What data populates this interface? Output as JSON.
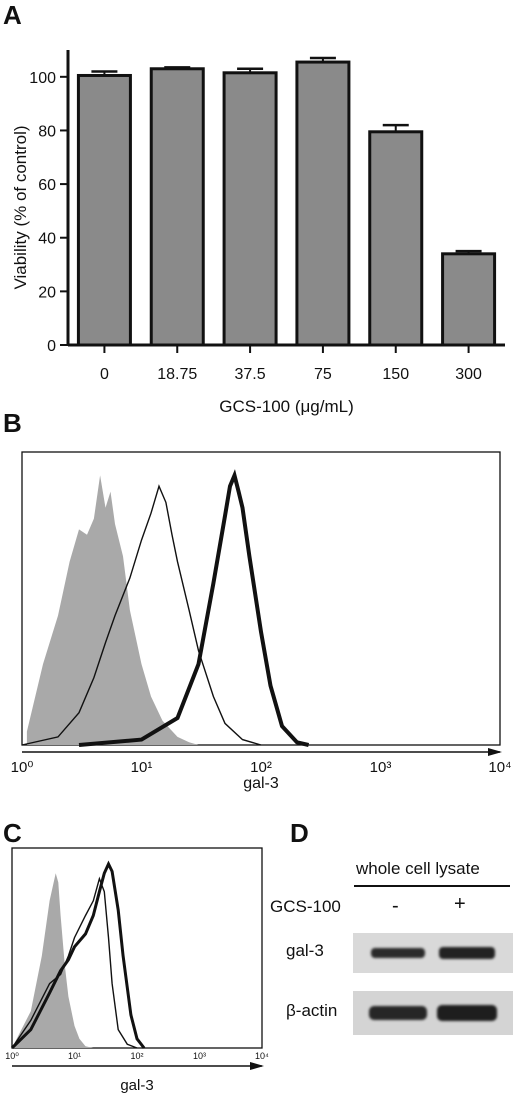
{
  "panels": {
    "a": "A",
    "b": "B",
    "c": "C",
    "d": "D"
  },
  "colors": {
    "bar_fill": "#8a8a8a",
    "hist_fill": "#a9a9a9",
    "ink": "#111111",
    "blot_bg": "#d9d9d9",
    "band": "#2a2a2a"
  },
  "chart_data": [
    {
      "id": "panel-a",
      "type": "bar",
      "categories": [
        "0",
        "18.75",
        "37.5",
        "75",
        "150",
        "300"
      ],
      "values": [
        100.5,
        103,
        101.5,
        105.5,
        79.5,
        34
      ],
      "errors": [
        1.5,
        0.5,
        1.5,
        1.5,
        2.5,
        1
      ],
      "xlabel": "GCS-100 (μg/mL)",
      "ylabel": "Viability (% of control)",
      "ylim": [
        0,
        110
      ],
      "yticks": [
        0,
        20,
        40,
        60,
        80,
        100
      ]
    },
    {
      "id": "panel-b",
      "type": "area",
      "xlabel": "gal-3",
      "xscale": "log",
      "xlim": [
        1,
        10000
      ],
      "ylim": [
        0,
        1
      ],
      "xtick_labels": [
        "10⁰",
        "10¹",
        "10²",
        "10³",
        "10⁴"
      ],
      "series": [
        {
          "style": "filled gray",
          "x": [
            1.1,
            1.5,
            2,
            2.5,
            3,
            3.5,
            4,
            4.5,
            5,
            5.5,
            6,
            7,
            8,
            10,
            12,
            15,
            20,
            25,
            30
          ],
          "y": [
            0.05,
            0.3,
            0.48,
            0.68,
            0.8,
            0.78,
            0.84,
            1.0,
            0.88,
            0.94,
            0.82,
            0.7,
            0.5,
            0.3,
            0.18,
            0.09,
            0.03,
            0.01,
            0.0
          ]
        },
        {
          "style": "thin line",
          "x": [
            1,
            2,
            3,
            4,
            5,
            6,
            8,
            10,
            12,
            14,
            16,
            18,
            20,
            25,
            30,
            40,
            50,
            70,
            100
          ],
          "y": [
            0.0,
            0.03,
            0.12,
            0.25,
            0.38,
            0.48,
            0.62,
            0.76,
            0.86,
            0.96,
            0.9,
            0.78,
            0.68,
            0.5,
            0.35,
            0.18,
            0.08,
            0.02,
            0.0
          ]
        },
        {
          "style": "thick line",
          "x": [
            3,
            10,
            20,
            30,
            40,
            50,
            55,
            60,
            65,
            70,
            80,
            100,
            120,
            150,
            200,
            250
          ],
          "y": [
            0.0,
            0.02,
            0.1,
            0.3,
            0.6,
            0.85,
            0.96,
            1.0,
            0.94,
            0.88,
            0.7,
            0.42,
            0.22,
            0.07,
            0.01,
            0.0
          ]
        }
      ]
    },
    {
      "id": "panel-c",
      "type": "area",
      "xlabel": "gal-3",
      "xscale": "log",
      "xlim": [
        1,
        10000
      ],
      "ylim": [
        0,
        1
      ],
      "xtick_labels": [
        "10⁰",
        "10¹",
        "10²",
        "10³",
        "10⁴"
      ],
      "series": [
        {
          "style": "filled gray",
          "x": [
            1,
            2,
            3,
            4,
            5,
            5.5,
            6,
            7,
            8,
            10,
            12,
            15,
            20
          ],
          "y": [
            0.0,
            0.2,
            0.5,
            0.8,
            0.95,
            0.9,
            0.72,
            0.45,
            0.28,
            0.12,
            0.05,
            0.01,
            0.0
          ]
        },
        {
          "style": "thin line",
          "x": [
            1,
            2,
            4,
            6,
            8,
            10,
            15,
            20,
            25,
            30,
            35,
            40,
            50,
            70,
            100
          ],
          "y": [
            0.0,
            0.15,
            0.35,
            0.4,
            0.5,
            0.6,
            0.72,
            0.8,
            0.92,
            0.85,
            0.6,
            0.35,
            0.1,
            0.02,
            0.0
          ]
        },
        {
          "style": "thick line",
          "x": [
            1,
            2,
            4,
            6,
            8,
            10,
            15,
            20,
            25,
            30,
            35,
            40,
            50,
            60,
            80,
            100,
            130
          ],
          "y": [
            0.0,
            0.1,
            0.3,
            0.42,
            0.48,
            0.55,
            0.62,
            0.72,
            0.85,
            0.95,
            1.0,
            0.96,
            0.75,
            0.5,
            0.18,
            0.05,
            0.0
          ]
        }
      ]
    }
  ],
  "blot": {
    "title": "whole cell lysate",
    "condition_label": "GCS-100",
    "lanes": [
      "-",
      "+"
    ],
    "rows": [
      "gal-3",
      "β-actin"
    ]
  }
}
